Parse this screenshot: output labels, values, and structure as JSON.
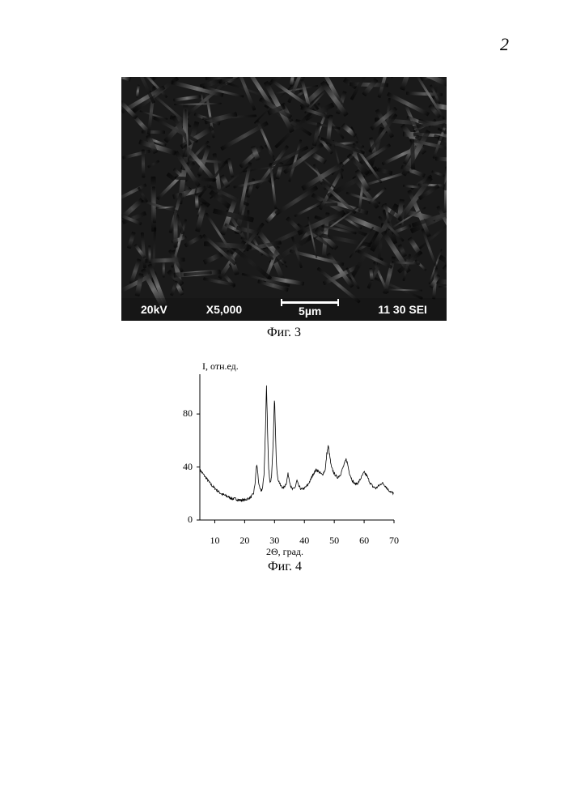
{
  "page_number": "2",
  "sem": {
    "caption": "Фиг. 3",
    "metadata": {
      "voltage": "20kV",
      "magnification": "X5,000",
      "scale_label": "5µm",
      "detector": "11 30 SEI"
    },
    "style": {
      "bg_color": "#1a1a1a",
      "text_color": "#ffffff",
      "font_size_pt": 14
    }
  },
  "xrd": {
    "caption": "Фиг. 4",
    "type": "line",
    "ylabel": "I, отн.ед.",
    "xlabel": "2Θ, град.",
    "xlim": [
      5,
      70
    ],
    "ylim": [
      0,
      110
    ],
    "xticks": [
      10,
      20,
      30,
      40,
      50,
      60,
      70
    ],
    "yticks": [
      0,
      40,
      80
    ],
    "line_color": "#000000",
    "line_width": 0.8,
    "background_color": "#ffffff",
    "axis_color": "#000000",
    "label_fontsize": 12,
    "tick_fontsize": 12,
    "data": [
      [
        5,
        38
      ],
      [
        6,
        35
      ],
      [
        7,
        32
      ],
      [
        8,
        29
      ],
      [
        9,
        26
      ],
      [
        10,
        24
      ],
      [
        11,
        22
      ],
      [
        12,
        20
      ],
      [
        13,
        19
      ],
      [
        14,
        18
      ],
      [
        15,
        17
      ],
      [
        16,
        16
      ],
      [
        17,
        16
      ],
      [
        18,
        15
      ],
      [
        19,
        15
      ],
      [
        20,
        15
      ],
      [
        21,
        16
      ],
      [
        22,
        17
      ],
      [
        23,
        20
      ],
      [
        23.5,
        28
      ],
      [
        24,
        42
      ],
      [
        24.3,
        38
      ],
      [
        24.6,
        30
      ],
      [
        25,
        24
      ],
      [
        25.5,
        22
      ],
      [
        26,
        24
      ],
      [
        26.5,
        35
      ],
      [
        27,
        70
      ],
      [
        27.3,
        102
      ],
      [
        27.6,
        75
      ],
      [
        28,
        40
      ],
      [
        28.5,
        28
      ],
      [
        29,
        32
      ],
      [
        29.5,
        55
      ],
      [
        30,
        92
      ],
      [
        30.3,
        70
      ],
      [
        30.6,
        45
      ],
      [
        31,
        32
      ],
      [
        32,
        26
      ],
      [
        33,
        24
      ],
      [
        34,
        28
      ],
      [
        34.5,
        35
      ],
      [
        35,
        30
      ],
      [
        35.5,
        25
      ],
      [
        36,
        23
      ],
      [
        37,
        25
      ],
      [
        37.5,
        30
      ],
      [
        38,
        26
      ],
      [
        39,
        23
      ],
      [
        40,
        24
      ],
      [
        41,
        26
      ],
      [
        42,
        30
      ],
      [
        43,
        35
      ],
      [
        44,
        38
      ],
      [
        45,
        36
      ],
      [
        46,
        34
      ],
      [
        47,
        38
      ],
      [
        47.5,
        50
      ],
      [
        48,
        56
      ],
      [
        48.5,
        48
      ],
      [
        49,
        40
      ],
      [
        50,
        35
      ],
      [
        51,
        32
      ],
      [
        52,
        34
      ],
      [
        53,
        40
      ],
      [
        54,
        46
      ],
      [
        54.5,
        42
      ],
      [
        55,
        36
      ],
      [
        56,
        30
      ],
      [
        57,
        27
      ],
      [
        58,
        28
      ],
      [
        59,
        32
      ],
      [
        60,
        36
      ],
      [
        61,
        33
      ],
      [
        62,
        28
      ],
      [
        63,
        25
      ],
      [
        64,
        24
      ],
      [
        65,
        26
      ],
      [
        66,
        28
      ],
      [
        67,
        26
      ],
      [
        68,
        23
      ],
      [
        69,
        21
      ],
      [
        70,
        20
      ]
    ]
  }
}
